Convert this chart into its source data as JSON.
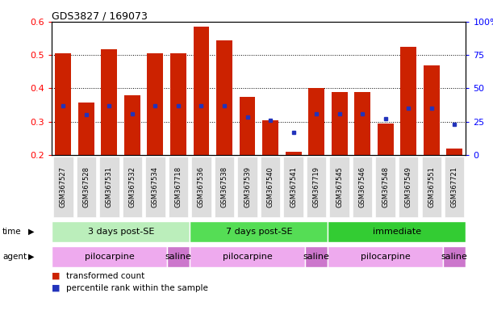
{
  "title": "GDS3827 / 169073",
  "samples": [
    "GSM367527",
    "GSM367528",
    "GSM367531",
    "GSM367532",
    "GSM367534",
    "GSM367718",
    "GSM367536",
    "GSM367538",
    "GSM367539",
    "GSM367540",
    "GSM367541",
    "GSM367719",
    "GSM367545",
    "GSM367546",
    "GSM367548",
    "GSM367549",
    "GSM367551",
    "GSM367721"
  ],
  "bar_tops": [
    0.505,
    0.358,
    0.518,
    0.38,
    0.505,
    0.505,
    0.585,
    0.545,
    0.375,
    0.305,
    0.21,
    0.4,
    0.39,
    0.39,
    0.295,
    0.525,
    0.47,
    0.22
  ],
  "bar_bottoms": [
    0.2,
    0.2,
    0.2,
    0.2,
    0.2,
    0.2,
    0.2,
    0.2,
    0.2,
    0.2,
    0.2,
    0.2,
    0.2,
    0.2,
    0.2,
    0.2,
    0.2,
    0.2
  ],
  "blue_vals": [
    0.347,
    0.32,
    0.347,
    0.323,
    0.347,
    0.347,
    0.347,
    0.347,
    0.313,
    0.305,
    0.268,
    0.323,
    0.323,
    0.323,
    0.308,
    0.34,
    0.34,
    0.293
  ],
  "ylim_left": [
    0.2,
    0.6
  ],
  "ylim_right": [
    0,
    100
  ],
  "yticks_left": [
    0.2,
    0.3,
    0.4,
    0.5,
    0.6
  ],
  "yticks_right": [
    0,
    25,
    50,
    75,
    100
  ],
  "bar_color": "#CC2200",
  "blue_color": "#2233BB",
  "tick_bg_color": "#DDDDDD",
  "time_groups": [
    {
      "label": "3 days post-SE",
      "start": 0,
      "end": 5,
      "color": "#BBEEBB"
    },
    {
      "label": "7 days post-SE",
      "start": 6,
      "end": 11,
      "color": "#55DD55"
    },
    {
      "label": "immediate",
      "start": 12,
      "end": 17,
      "color": "#33CC33"
    }
  ],
  "agent_groups": [
    {
      "label": "pilocarpine",
      "start": 0,
      "end": 4,
      "color": "#EEAAEE"
    },
    {
      "label": "saline",
      "start": 5,
      "end": 5,
      "color": "#CC77CC"
    },
    {
      "label": "pilocarpine",
      "start": 6,
      "end": 10,
      "color": "#EEAAEE"
    },
    {
      "label": "saline",
      "start": 11,
      "end": 11,
      "color": "#CC77CC"
    },
    {
      "label": "pilocarpine",
      "start": 12,
      "end": 16,
      "color": "#EEAAEE"
    },
    {
      "label": "saline",
      "start": 17,
      "end": 17,
      "color": "#CC77CC"
    }
  ],
  "legend_items": [
    {
      "label": "transformed count",
      "color": "#CC2200"
    },
    {
      "label": "percentile rank within the sample",
      "color": "#2233BB"
    }
  ],
  "grid_vals": [
    0.3,
    0.4,
    0.5
  ],
  "grid_color": "black",
  "grid_linestyle": ":"
}
